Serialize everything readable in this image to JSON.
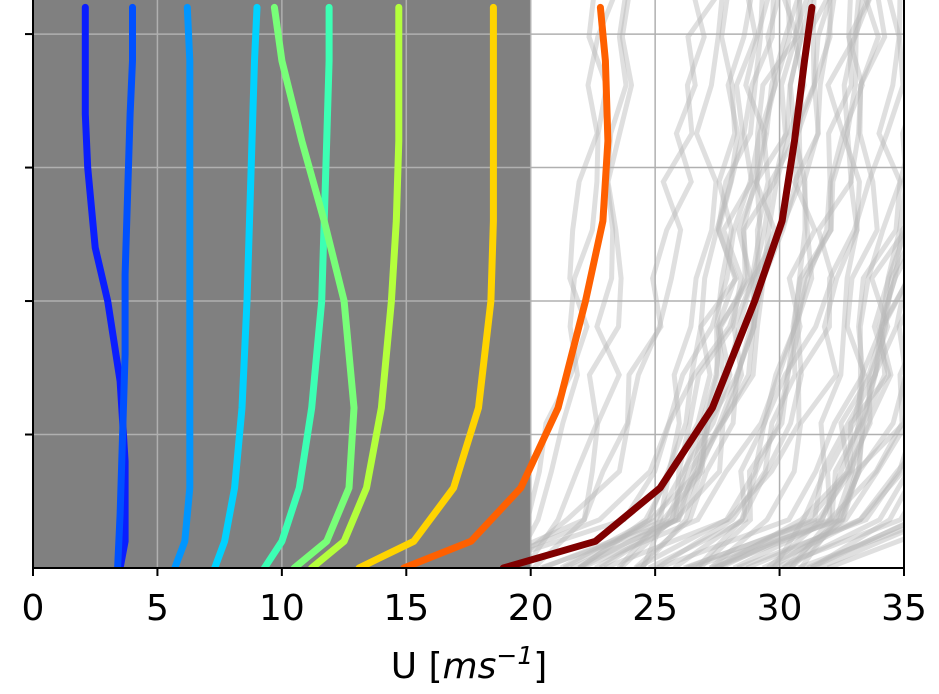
{
  "chart_data": {
    "type": "line",
    "xlabel_main": "U [",
    "xlabel_unit": "ms",
    "xlabel_exp": "−1",
    "xlabel_close": "]",
    "xlim": [
      0,
      35
    ],
    "ylim": [
      0,
      1
    ],
    "xticks": [
      0,
      5,
      10,
      15,
      20,
      25,
      30,
      35
    ],
    "xtick_labels": [
      "0",
      "5",
      "10",
      "15",
      "20",
      "25",
      "30",
      "35"
    ],
    "yticks": [
      0.25,
      0.5,
      0.75,
      1.0
    ],
    "grid": true,
    "background_band": {
      "color": "#808080",
      "x_range": [
        0,
        20
      ]
    },
    "background_profiles_color": "#b8b8b8",
    "series": [
      {
        "color": "#0a1eff",
        "x": [
          3.5,
          3.7,
          3.7,
          3.5,
          3.0,
          2.5,
          2.2,
          2.1,
          2.1,
          2.1
        ],
        "y": [
          0,
          0.05,
          0.2,
          0.35,
          0.5,
          0.6,
          0.75,
          0.85,
          0.95,
          1.05
        ]
      },
      {
        "color": "#0050ff",
        "x": [
          3.4,
          3.5,
          3.6,
          3.7,
          3.7,
          3.8,
          3.9,
          4.0,
          4.0
        ],
        "y": [
          0,
          0.1,
          0.25,
          0.4,
          0.55,
          0.7,
          0.85,
          0.95,
          1.05
        ]
      },
      {
        "color": "#0096ff",
        "x": [
          5.7,
          6.1,
          6.3,
          6.3,
          6.3,
          6.3,
          6.3,
          6.3,
          6.2
        ],
        "y": [
          0,
          0.05,
          0.15,
          0.3,
          0.5,
          0.65,
          0.8,
          0.95,
          1.05
        ]
      },
      {
        "color": "#00d2ff",
        "x": [
          7.3,
          7.7,
          8.1,
          8.4,
          8.6,
          8.7,
          8.8,
          8.9,
          9.0
        ],
        "y": [
          0,
          0.05,
          0.15,
          0.3,
          0.5,
          0.65,
          0.8,
          0.95,
          1.05
        ]
      },
      {
        "color": "#3cffb4",
        "x": [
          9.3,
          10.0,
          10.7,
          11.2,
          11.6,
          11.7,
          11.8,
          11.9,
          11.9
        ],
        "y": [
          0,
          0.05,
          0.15,
          0.3,
          0.5,
          0.65,
          0.8,
          0.95,
          1.05
        ]
      },
      {
        "color": "#78ff78",
        "x": [
          10.5,
          11.8,
          12.7,
          12.9,
          12.5,
          11.7,
          10.8,
          10.0,
          9.7
        ],
        "y": [
          0,
          0.05,
          0.15,
          0.3,
          0.5,
          0.65,
          0.8,
          0.95,
          1.05
        ]
      },
      {
        "color": "#b4ff3c",
        "x": [
          11.2,
          12.5,
          13.4,
          14.0,
          14.4,
          14.6,
          14.7,
          14.7,
          14.7
        ],
        "y": [
          0,
          0.05,
          0.15,
          0.3,
          0.5,
          0.65,
          0.8,
          0.95,
          1.05
        ]
      },
      {
        "color": "#ffd400",
        "x": [
          13.1,
          15.3,
          16.9,
          17.9,
          18.4,
          18.5,
          18.5,
          18.5,
          18.5
        ],
        "y": [
          0,
          0.05,
          0.15,
          0.3,
          0.5,
          0.65,
          0.8,
          0.95,
          1.05
        ]
      },
      {
        "color": "#ff6000",
        "x": [
          14.9,
          17.6,
          19.6,
          21.1,
          22.2,
          22.9,
          23.1,
          23.0,
          22.8
        ],
        "y": [
          0,
          0.05,
          0.15,
          0.3,
          0.5,
          0.65,
          0.8,
          0.95,
          1.05
        ]
      },
      {
        "color": "#800000",
        "x": [
          18.9,
          22.6,
          25.2,
          27.3,
          29.0,
          30.1,
          30.6,
          31.0,
          31.3
        ],
        "y": [
          0,
          0.05,
          0.15,
          0.3,
          0.5,
          0.65,
          0.8,
          0.95,
          1.05
        ]
      }
    ]
  }
}
